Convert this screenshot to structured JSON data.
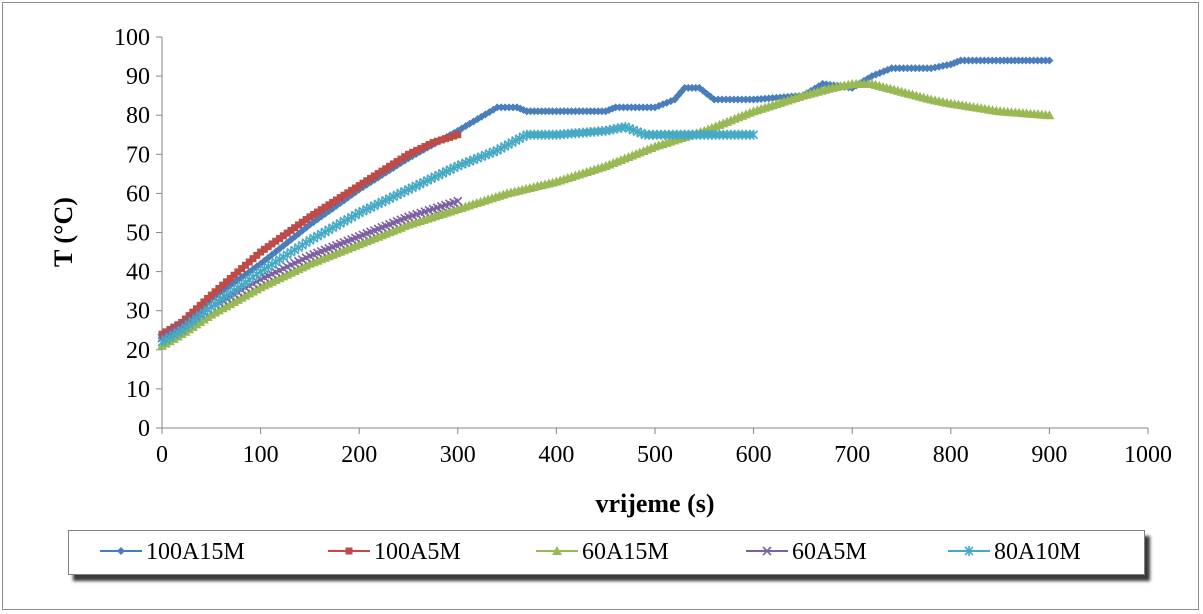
{
  "chart_data": {
    "type": "line",
    "xlabel": "vrijeme (s)",
    "ylabel": "T (°C)",
    "xlim": [
      0,
      1000
    ],
    "ylim": [
      0,
      100
    ],
    "xticks": [
      0,
      100,
      200,
      300,
      400,
      500,
      600,
      700,
      800,
      900,
      1000
    ],
    "yticks": [
      0,
      10,
      20,
      30,
      40,
      50,
      60,
      70,
      80,
      90,
      100
    ],
    "grid": false,
    "legend_position": "bottom",
    "series": [
      {
        "name": "100A15M",
        "color": "#4a7ebb",
        "marker": "diamond",
        "points": [
          [
            0,
            23
          ],
          [
            20,
            26
          ],
          [
            50,
            33
          ],
          [
            100,
            42
          ],
          [
            150,
            52
          ],
          [
            200,
            61
          ],
          [
            250,
            69
          ],
          [
            300,
            76
          ],
          [
            320,
            79
          ],
          [
            340,
            82
          ],
          [
            360,
            82
          ],
          [
            370,
            81
          ],
          [
            400,
            81
          ],
          [
            450,
            81
          ],
          [
            460,
            82
          ],
          [
            500,
            82
          ],
          [
            520,
            84
          ],
          [
            530,
            87
          ],
          [
            545,
            87
          ],
          [
            560,
            84
          ],
          [
            600,
            84
          ],
          [
            650,
            85
          ],
          [
            670,
            88
          ],
          [
            700,
            87
          ],
          [
            720,
            90
          ],
          [
            740,
            92
          ],
          [
            780,
            92
          ],
          [
            800,
            93
          ],
          [
            810,
            94
          ],
          [
            850,
            94
          ],
          [
            880,
            94
          ],
          [
            900,
            94
          ]
        ]
      },
      {
        "name": "100A5M",
        "color": "#be4b48",
        "marker": "square",
        "points": [
          [
            0,
            24
          ],
          [
            20,
            27
          ],
          [
            50,
            34
          ],
          [
            100,
            45
          ],
          [
            150,
            54
          ],
          [
            200,
            62
          ],
          [
            250,
            70
          ],
          [
            275,
            73
          ],
          [
            300,
            75
          ]
        ]
      },
      {
        "name": "60A15M",
        "color": "#98b954",
        "marker": "triangle",
        "points": [
          [
            0,
            21
          ],
          [
            20,
            24
          ],
          [
            50,
            29
          ],
          [
            100,
            36
          ],
          [
            150,
            42
          ],
          [
            200,
            47
          ],
          [
            250,
            52
          ],
          [
            300,
            56
          ],
          [
            350,
            60
          ],
          [
            400,
            63
          ],
          [
            450,
            67
          ],
          [
            500,
            72
          ],
          [
            550,
            76
          ],
          [
            600,
            81
          ],
          [
            650,
            85
          ],
          [
            680,
            87
          ],
          [
            700,
            88
          ],
          [
            720,
            88
          ],
          [
            750,
            86
          ],
          [
            780,
            84
          ],
          [
            800,
            83
          ],
          [
            850,
            81
          ],
          [
            900,
            80
          ]
        ]
      },
      {
        "name": "60A5M",
        "color": "#7d60a0",
        "marker": "x",
        "points": [
          [
            0,
            23
          ],
          [
            20,
            26
          ],
          [
            50,
            31
          ],
          [
            100,
            38
          ],
          [
            150,
            44
          ],
          [
            200,
            49
          ],
          [
            250,
            54
          ],
          [
            275,
            56
          ],
          [
            300,
            58
          ]
        ]
      },
      {
        "name": "80A10M",
        "color": "#46aac5",
        "marker": "star",
        "points": [
          [
            0,
            22
          ],
          [
            20,
            25
          ],
          [
            50,
            31
          ],
          [
            100,
            40
          ],
          [
            150,
            48
          ],
          [
            200,
            55
          ],
          [
            250,
            61
          ],
          [
            300,
            67
          ],
          [
            340,
            71
          ],
          [
            370,
            75
          ],
          [
            400,
            75
          ],
          [
            450,
            76
          ],
          [
            470,
            77
          ],
          [
            490,
            75
          ],
          [
            550,
            75
          ],
          [
            600,
            75
          ]
        ]
      }
    ]
  }
}
